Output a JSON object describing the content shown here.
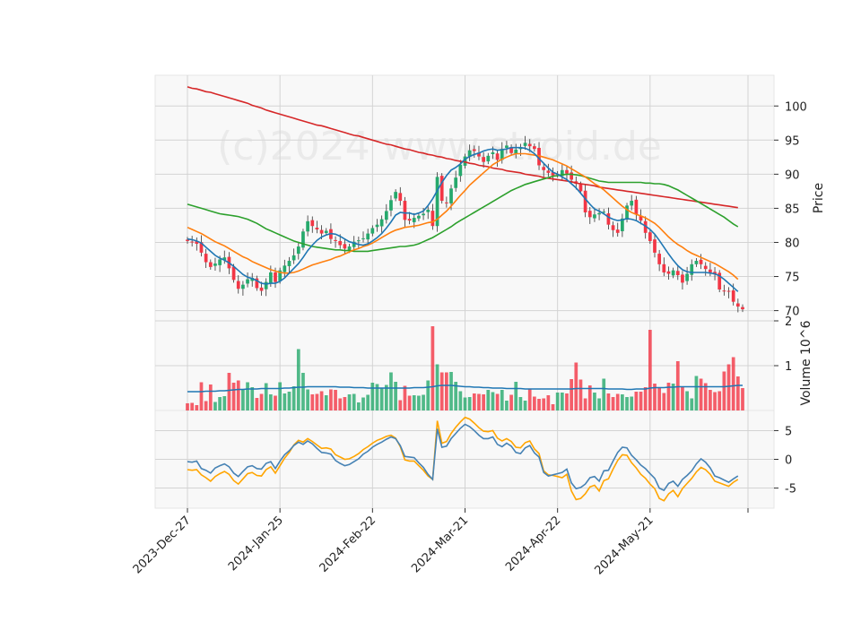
{
  "watermark": "(c)2024 www.stroid.de",
  "chart_data": {
    "type": "candlestick",
    "x_tick_labels": [
      "2023-Dec-27",
      "2024-Jan-25",
      "2024-Feb-22",
      "2024-Mar-21",
      "2024-Apr-22",
      "2024-May-21"
    ],
    "x_tick_index": [
      0,
      20,
      40,
      60,
      80,
      100
    ],
    "grid": true,
    "colors": {
      "up": "#26a96c",
      "down": "#f23645",
      "ma_short": "#1f77b4",
      "ma_mid": "#ff7f0e",
      "ma_long": "#2ca02c",
      "ma_longest": "#d62728",
      "volume_ma": "#1f77b4",
      "osc_1": "#4682b4",
      "osc_2": "#ffa500",
      "panel_bg": "#f8f8f8",
      "grid": "#d3d3d3"
    },
    "price_panel": {
      "ylabel": "Price",
      "ylim": [
        68.5,
        104.5
      ],
      "yticks": [
        70,
        75,
        80,
        85,
        90,
        95,
        100
      ],
      "close": [
        80.2,
        80.1,
        79.8,
        78.5,
        77.1,
        76.4,
        76.9,
        77.5,
        77.8,
        76.2,
        74.5,
        73.2,
        73.8,
        74.6,
        74.8,
        73.3,
        72.9,
        74.2,
        75.6,
        74.2,
        75.9,
        76.6,
        77.3,
        78.1,
        79.4,
        81.6,
        83.1,
        82.4,
        81.9,
        81.3,
        81.7,
        80.5,
        80.2,
        79.6,
        79.1,
        79.4,
        80.1,
        80.3,
        80.6,
        81.3,
        82.1,
        82.6,
        83.4,
        84.6,
        86.2,
        87.4,
        86.1,
        83.3,
        83.2,
        83.6,
        83.9,
        84.2,
        84.8,
        82.4,
        89.6,
        86.1,
        85.8,
        87.9,
        89.5,
        91.4,
        92.6,
        93.5,
        93.4,
        92.6,
        91.8,
        92.7,
        93.2,
        92.1,
        93.7,
        94.2,
        93.1,
        93.6,
        93.9,
        94.6,
        94.1,
        93.7,
        91.3,
        90.6,
        90.2,
        89.8,
        89.9,
        90.6,
        90.1,
        89.2,
        88.6,
        87.5,
        84.4,
        83.7,
        84.1,
        84.3,
        84.5,
        82.6,
        81.8,
        81.4,
        83.5,
        85.4,
        86.1,
        84.1,
        83.2,
        81.4,
        80.2,
        78.5,
        76.8,
        75.6,
        75.4,
        75.9,
        75.2,
        74.1,
        75.4,
        76.8,
        77.3,
        76.8,
        76.1,
        75.6,
        75.3,
        73.1,
        72.9,
        72.8,
        71.3,
        70.6,
        70.2
      ],
      "ma_short": [
        80.5,
        80.4,
        80.2,
        79.9,
        79.3,
        78.7,
        78.1,
        77.7,
        77.4,
        77.0,
        76.5,
        75.9,
        75.3,
        74.9,
        74.7,
        74.4,
        74.0,
        73.9,
        74.0,
        74.0,
        74.3,
        74.8,
        75.5,
        76.2,
        76.9,
        77.8,
        78.8,
        79.6,
        80.3,
        80.8,
        81.1,
        81.3,
        81.2,
        80.9,
        80.5,
        80.1,
        79.9,
        79.7,
        79.6,
        79.8,
        80.2,
        80.7,
        81.3,
        82.1,
        83.0,
        84.0,
        84.4,
        84.3,
        84.3,
        84.1,
        84.3,
        84.6,
        85.4,
        86.4,
        87.6,
        88.8,
        89.8,
        90.6,
        91.0,
        91.5,
        92.2,
        92.6,
        92.9,
        93.1,
        93.4,
        93.6,
        93.7,
        93.5,
        93.6,
        93.7,
        93.9,
        93.9,
        93.9,
        93.8,
        93.5,
        93.0,
        92.3,
        91.6,
        90.9,
        90.3,
        90.0,
        89.6,
        89.2,
        88.6,
        88.0,
        87.2,
        86.4,
        85.6,
        84.9,
        84.6,
        84.2,
        83.7,
        83.4,
        83.2,
        83.3,
        83.5,
        83.4,
        83.2,
        82.8,
        82.4,
        81.9,
        81.2,
        80.3,
        79.3,
        78.3,
        77.4,
        76.6,
        76.0,
        75.7,
        75.6,
        75.6,
        75.6,
        75.6,
        75.5,
        75.4,
        75.1,
        74.6,
        74.0,
        73.4,
        72.8
      ],
      "ma_mid": [
        82.2,
        81.9,
        81.6,
        81.3,
        80.9,
        80.5,
        80.1,
        79.8,
        79.5,
        79.1,
        78.7,
        78.3,
        77.9,
        77.6,
        77.2,
        76.9,
        76.6,
        76.3,
        76.0,
        75.8,
        75.6,
        75.5,
        75.5,
        75.6,
        75.8,
        76.1,
        76.4,
        76.7,
        76.9,
        77.1,
        77.3,
        77.5,
        77.8,
        78.0,
        78.3,
        78.6,
        78.9,
        79.1,
        79.4,
        79.6,
        79.9,
        80.3,
        80.7,
        81.1,
        81.5,
        81.8,
        82.0,
        82.2,
        82.3,
        82.4,
        82.5,
        82.7,
        82.9,
        83.0,
        83.4,
        84.0,
        84.6,
        85.3,
        86.1,
        86.9,
        87.6,
        88.4,
        89.0,
        89.6,
        90.2,
        90.8,
        91.4,
        91.8,
        92.2,
        92.5,
        92.8,
        93.0,
        93.0,
        93.0,
        92.9,
        92.8,
        92.7,
        92.5,
        92.3,
        92.1,
        91.8,
        91.5,
        91.2,
        90.8,
        90.4,
        90.0,
        89.6,
        89.1,
        88.6,
        88.2,
        87.7,
        87.1,
        86.5,
        85.9,
        85.3,
        84.8,
        84.4,
        84.1,
        83.9,
        83.6,
        83.2,
        82.8,
        82.2,
        81.5,
        80.8,
        80.2,
        79.7,
        79.3,
        78.8,
        78.4,
        78.1,
        77.8,
        77.5,
        77.2,
        76.9,
        76.5,
        76.1,
        75.7,
        75.2,
        74.6
      ],
      "ma_long": [
        85.6,
        85.4,
        85.2,
        85.0,
        84.8,
        84.6,
        84.4,
        84.2,
        84.1,
        84.0,
        83.9,
        83.8,
        83.6,
        83.4,
        83.1,
        82.8,
        82.4,
        82.0,
        81.7,
        81.4,
        81.1,
        80.8,
        80.5,
        80.2,
        80.0,
        79.8,
        79.6,
        79.4,
        79.3,
        79.2,
        79.1,
        79.0,
        78.9,
        78.9,
        78.8,
        78.8,
        78.7,
        78.7,
        78.7,
        78.7,
        78.8,
        78.9,
        79.0,
        79.1,
        79.2,
        79.3,
        79.4,
        79.4,
        79.5,
        79.6,
        79.8,
        80.1,
        80.4,
        80.7,
        81.1,
        81.5,
        81.9,
        82.3,
        82.8,
        83.2,
        83.6,
        84.0,
        84.4,
        84.8,
        85.2,
        85.6,
        86.0,
        86.4,
        86.8,
        87.2,
        87.6,
        87.9,
        88.2,
        88.5,
        88.7,
        88.9,
        89.1,
        89.3,
        89.5,
        89.7,
        89.8,
        89.9,
        90.0,
        90.0,
        89.9,
        89.8,
        89.6,
        89.4,
        89.2,
        89.0,
        88.9,
        88.8,
        88.8,
        88.8,
        88.8,
        88.8,
        88.8,
        88.8,
        88.8,
        88.7,
        88.7,
        88.6,
        88.6,
        88.5,
        88.3,
        88.0,
        87.7,
        87.3,
        86.9,
        86.5,
        86.1,
        85.7,
        85.3,
        84.9,
        84.5,
        84.1,
        83.7,
        83.2,
        82.7,
        82.3
      ],
      "ma_longest": [
        102.8,
        102.6,
        102.5,
        102.3,
        102.1,
        102.0,
        101.8,
        101.6,
        101.4,
        101.2,
        101.0,
        100.8,
        100.6,
        100.4,
        100.1,
        99.9,
        99.7,
        99.4,
        99.2,
        99.0,
        98.8,
        98.6,
        98.4,
        98.2,
        98.0,
        97.8,
        97.6,
        97.4,
        97.2,
        97.1,
        96.9,
        96.7,
        96.5,
        96.3,
        96.1,
        95.9,
        95.7,
        95.6,
        95.4,
        95.2,
        95.0,
        94.8,
        94.6,
        94.4,
        94.3,
        94.1,
        93.9,
        93.7,
        93.6,
        93.4,
        93.2,
        93.1,
        92.9,
        92.8,
        92.6,
        92.5,
        92.3,
        92.2,
        92.0,
        91.9,
        91.8,
        91.6,
        91.5,
        91.3,
        91.2,
        91.1,
        90.9,
        90.8,
        90.7,
        90.5,
        90.4,
        90.3,
        90.2,
        90.0,
        89.9,
        89.8,
        89.7,
        89.5,
        89.4,
        89.3,
        89.2,
        89.1,
        89.0,
        88.9,
        88.7,
        88.6,
        88.5,
        88.4,
        88.3,
        88.1,
        88.0,
        87.9,
        87.8,
        87.7,
        87.6,
        87.5,
        87.4,
        87.3,
        87.2,
        87.1,
        87.0,
        86.9,
        86.8,
        86.7,
        86.6,
        86.5,
        86.4,
        86.3,
        86.2,
        86.1,
        86.0,
        85.9,
        85.8,
        85.7,
        85.6,
        85.5,
        85.4,
        85.3,
        85.2,
        85.1
      ]
    },
    "volume_panel": {
      "ylabel": "Volume  10^6",
      "ylim": [
        0,
        2
      ],
      "yticks": [
        1,
        2
      ],
      "volume": [
        0.16,
        0.17,
        0.12,
        0.63,
        0.21,
        0.58,
        0.19,
        0.3,
        0.32,
        0.84,
        0.62,
        0.67,
        0.48,
        0.63,
        0.52,
        0.28,
        0.37,
        0.61,
        0.36,
        0.33,
        0.63,
        0.38,
        0.42,
        0.54,
        1.37,
        0.84,
        0.47,
        0.36,
        0.37,
        0.43,
        0.34,
        0.47,
        0.46,
        0.27,
        0.3,
        0.36,
        0.37,
        0.18,
        0.29,
        0.35,
        0.62,
        0.59,
        0.51,
        0.57,
        0.85,
        0.64,
        0.23,
        0.55,
        0.33,
        0.34,
        0.33,
        0.35,
        0.67,
        1.88,
        1.03,
        0.85,
        0.85,
        0.86,
        0.64,
        0.43,
        0.29,
        0.3,
        0.38,
        0.37,
        0.36,
        0.46,
        0.41,
        0.37,
        0.46,
        0.22,
        0.35,
        0.64,
        0.3,
        0.22,
        0.49,
        0.31,
        0.26,
        0.27,
        0.34,
        0.14,
        0.4,
        0.4,
        0.38,
        0.7,
        1.07,
        0.69,
        0.27,
        0.56,
        0.4,
        0.27,
        0.71,
        0.38,
        0.3,
        0.37,
        0.36,
        0.3,
        0.31,
        0.42,
        0.42,
        0.52,
        1.8,
        0.6,
        0.51,
        0.39,
        0.62,
        0.6,
        1.1,
        0.52,
        0.43,
        0.27,
        0.77,
        0.71,
        0.61,
        0.46,
        0.41,
        0.43,
        0.87,
        1.03,
        1.19,
        0.76,
        0.5
      ],
      "ma": [
        0.42,
        0.42,
        0.42,
        0.42,
        0.43,
        0.43,
        0.43,
        0.44,
        0.44,
        0.45,
        0.46,
        0.47,
        0.47,
        0.48,
        0.48,
        0.48,
        0.49,
        0.49,
        0.49,
        0.49,
        0.49,
        0.5,
        0.5,
        0.51,
        0.52,
        0.52,
        0.53,
        0.53,
        0.53,
        0.53,
        0.53,
        0.53,
        0.53,
        0.52,
        0.52,
        0.52,
        0.51,
        0.51,
        0.51,
        0.5,
        0.5,
        0.5,
        0.5,
        0.5,
        0.5,
        0.5,
        0.5,
        0.5,
        0.5,
        0.51,
        0.51,
        0.51,
        0.52,
        0.53,
        0.55,
        0.56,
        0.56,
        0.56,
        0.55,
        0.54,
        0.53,
        0.53,
        0.52,
        0.52,
        0.51,
        0.51,
        0.5,
        0.5,
        0.5,
        0.49,
        0.49,
        0.49,
        0.49,
        0.48,
        0.48,
        0.48,
        0.48,
        0.48,
        0.48,
        0.48,
        0.48,
        0.48,
        0.48,
        0.48,
        0.49,
        0.49,
        0.49,
        0.49,
        0.49,
        0.49,
        0.49,
        0.48,
        0.48,
        0.48,
        0.48,
        0.47,
        0.47,
        0.48,
        0.48,
        0.48,
        0.5,
        0.51,
        0.51,
        0.51,
        0.52,
        0.52,
        0.53,
        0.53,
        0.53,
        0.53,
        0.53,
        0.53,
        0.53,
        0.53,
        0.53,
        0.53,
        0.53,
        0.54,
        0.55,
        0.56,
        0.56
      ]
    },
    "oscillator_panel": {
      "ylim": [
        -8.5,
        8.5
      ],
      "yticks": [
        -5,
        0,
        5
      ],
      "line1": [
        -0.4,
        -0.5,
        -0.3,
        -1.6,
        -1.9,
        -2.4,
        -1.5,
        -1.1,
        -0.8,
        -1.3,
        -2.4,
        -3.0,
        -2.1,
        -1.3,
        -1.1,
        -1.6,
        -1.7,
        -0.7,
        -0.4,
        -1.6,
        -0.3,
        0.8,
        1.5,
        2.4,
        3.0,
        2.6,
        3.2,
        2.7,
        1.9,
        1.2,
        1.1,
        0.9,
        -0.2,
        -0.7,
        -1.1,
        -0.9,
        -0.4,
        0.1,
        0.9,
        1.4,
        2.1,
        2.6,
        3.0,
        3.5,
        3.9,
        3.6,
        2.4,
        0.5,
        0.4,
        0.3,
        -0.6,
        -1.4,
        -2.6,
        -3.5,
        5.3,
        2.1,
        2.3,
        3.6,
        4.5,
        5.4,
        6.1,
        5.7,
        5.0,
        4.2,
        3.6,
        3.6,
        3.9,
        2.6,
        2.2,
        2.8,
        2.3,
        1.2,
        1.0,
        2.0,
        2.4,
        1.1,
        0.4,
        -2.3,
        -2.9,
        -2.7,
        -2.5,
        -2.3,
        -1.7,
        -4.1,
        -5.1,
        -4.9,
        -4.3,
        -3.2,
        -3.0,
        -3.8,
        -2.0,
        -1.9,
        -0.3,
        1.2,
        2.1,
        2.0,
        0.7,
        -0.1,
        -1.0,
        -1.6,
        -2.5,
        -3.3,
        -5.0,
        -5.4,
        -4.2,
        -3.8,
        -4.7,
        -3.5,
        -2.8,
        -2.0,
        -0.8,
        0.1,
        -0.5,
        -1.5,
        -2.9,
        -3.2,
        -3.6,
        -4.0,
        -3.4,
        -2.9
      ],
      "line2": [
        -1.8,
        -1.9,
        -1.8,
        -2.7,
        -3.2,
        -3.8,
        -3.0,
        -2.5,
        -2.1,
        -2.6,
        -3.7,
        -4.3,
        -3.4,
        -2.5,
        -2.3,
        -2.8,
        -2.9,
        -1.8,
        -1.3,
        -2.4,
        -1.1,
        0.2,
        1.2,
        2.5,
        3.3,
        3.0,
        3.6,
        3.1,
        2.5,
        1.9,
        2.0,
        1.8,
        0.8,
        0.4,
        0.0,
        0.1,
        0.5,
        1.0,
        1.7,
        2.2,
        2.8,
        3.3,
        3.6,
        4.0,
        4.2,
        3.7,
        2.2,
        -0.1,
        -0.3,
        -0.3,
        -1.1,
        -1.9,
        -2.9,
        -3.5,
        6.7,
        2.8,
        3.1,
        4.5,
        5.6,
        6.5,
        7.3,
        7.0,
        6.3,
        5.5,
        4.9,
        4.8,
        5.0,
        3.7,
        3.2,
        3.6,
        3.1,
        2.1,
        2.0,
        2.9,
        3.2,
        1.8,
        1.0,
        -2.0,
        -2.7,
        -2.8,
        -3.0,
        -3.2,
        -2.6,
        -5.5,
        -7.0,
        -6.8,
        -6.0,
        -4.8,
        -4.5,
        -5.5,
        -3.7,
        -3.4,
        -1.7,
        -0.2,
        0.8,
        0.7,
        -0.6,
        -1.5,
        -2.6,
        -3.3,
        -4.3,
        -5.1,
        -6.8,
        -7.2,
        -6.0,
        -5.4,
        -6.5,
        -5.1,
        -4.2,
        -3.3,
        -2.2,
        -1.4,
        -1.8,
        -2.6,
        -3.8,
        -4.1,
        -4.4,
        -4.7,
        -4.0,
        -3.5
      ]
    }
  }
}
